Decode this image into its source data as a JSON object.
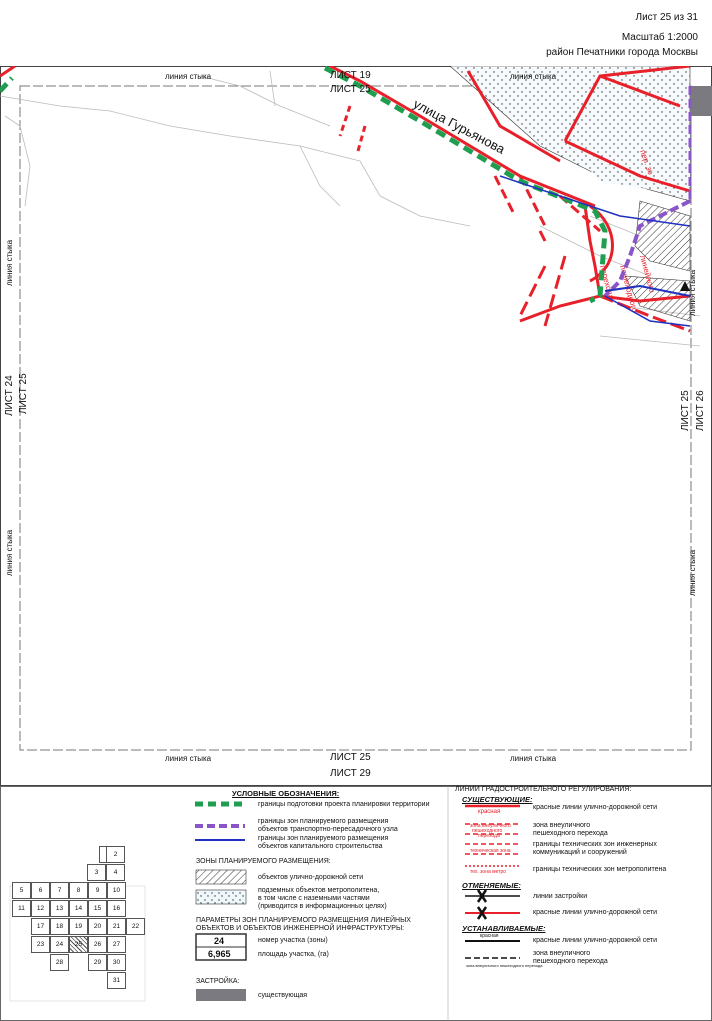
{
  "header": {
    "sheet": "Лист 25 из 31",
    "scale": "Масштаб 1:2000",
    "district": "район Печатники города Москвы"
  },
  "map": {
    "street_name": "улица Гурьянова",
    "junction_label": "линия стыка",
    "sheet_top_outer": "ЛИСТ 19",
    "sheet_top_inner": "ЛИСТ 25",
    "sheet_left_outer": "ЛИСТ 24",
    "sheet_left_inner": "ЛИСТ 25",
    "sheet_right_inner": "ЛИСТ 25",
    "sheet_right_outer": "ЛИСТ 26",
    "sheet_bottom_inner": "ЛИСТ 25",
    "sheet_bottom_outer": "ЛИСТ 29",
    "colors": {
      "red_line": "#e8202a",
      "green_boundary": "#1f9e50",
      "purple_boundary": "#8a55c8",
      "blue_line": "#2030c0",
      "hatch": "#333333",
      "dotted_fill": "#e8f4f8",
      "building": "#7a7a80"
    }
  },
  "legend": {
    "title": "УСЛОВНЫЕ ОБОЗНАЧЕНИЯ:",
    "items_left": [
      "границы подготовки проекта планировки территории",
      "границы зон планируемого размещения",
      "объектов транспортно-пересадочного узла",
      "границы зон планируемого размещения",
      "объектов капитального строительства"
    ],
    "zones_title": "ЗОНЫ ПЛАНИРУЕМОГО РАЗМЕЩЕНИЯ:",
    "zone_road": "объектов улично-дорожной сети",
    "zone_metro_1": "подземных объектов метрополитена,",
    "zone_metro_2": "в том числе с наземными частями",
    "zone_metro_3": "(приводится в информационных целях)",
    "params_title_1": "ПАРАМЕТРЫ ЗОН ПЛАНИРУЕМОГО РАЗМЕЩЕНИЯ ЛИНЕЙНЫХ",
    "params_title_2": "ОБЪЕКТОВ И ОБЪЕКТОВ ИНЖЕНЕРНОЙ ИНФРАСТРУКТУРЫ:",
    "param_number": "24",
    "param_area": "6,965",
    "param_number_label": "номер участка (зоны)",
    "param_area_label": "площадь участка, (га)",
    "build_title": "ЗАСТРОЙКА:",
    "build_existing": "существующая",
    "regulation_title": "ЛИНИИ ГРАДОСТРОИТЕЛЬНОГО РЕГУЛИРОВАНИЯ:",
    "existing_title": "СУЩЕСТВУЮЩИЕ:",
    "red_lines": "красные линии улично-дорожной сети",
    "red_word": "красная",
    "ped_zone_1": "зона внеуличного",
    "ped_zone_2": "пешеходного перехода",
    "ped_zone_sample_1": "зона внеуличного",
    "ped_zone_sample_2": "пешеходного",
    "ped_zone_sample_3": "перехода",
    "tech_zone_1": "границы технических зон инженерных",
    "tech_zone_2": "коммуникаций и сооружений",
    "tech_zone_sample": "техническая зона",
    "metro_tech": "границы технических зон метрополитена",
    "metro_sample": "тех. зона метро",
    "cancel_title": "ОТМЕНЯЕМЫЕ:",
    "build_line": "линии застройки",
    "cancel_red": "красные линии улично-дорожной сети",
    "install_title": "УСТАНАВЛИВАЕМЫЕ:",
    "install_red": "красные линии улично-дорожной сети",
    "install_ped_1": "зона внеуличного",
    "install_ped_2": "пешеходного перехода",
    "install_red_word": "красная",
    "install_ped_sample": "зона внеуличного пешеходного перехода"
  },
  "sheet_index": [
    "1",
    "2",
    "3",
    "4",
    "5",
    "6",
    "7",
    "8",
    "9",
    "10",
    "11",
    "12",
    "13",
    "14",
    "15",
    "16",
    "17",
    "18",
    "19",
    "20",
    "21",
    "22",
    "23",
    "24",
    "25",
    "26",
    "27",
    "28",
    "29",
    "30",
    "31"
  ]
}
